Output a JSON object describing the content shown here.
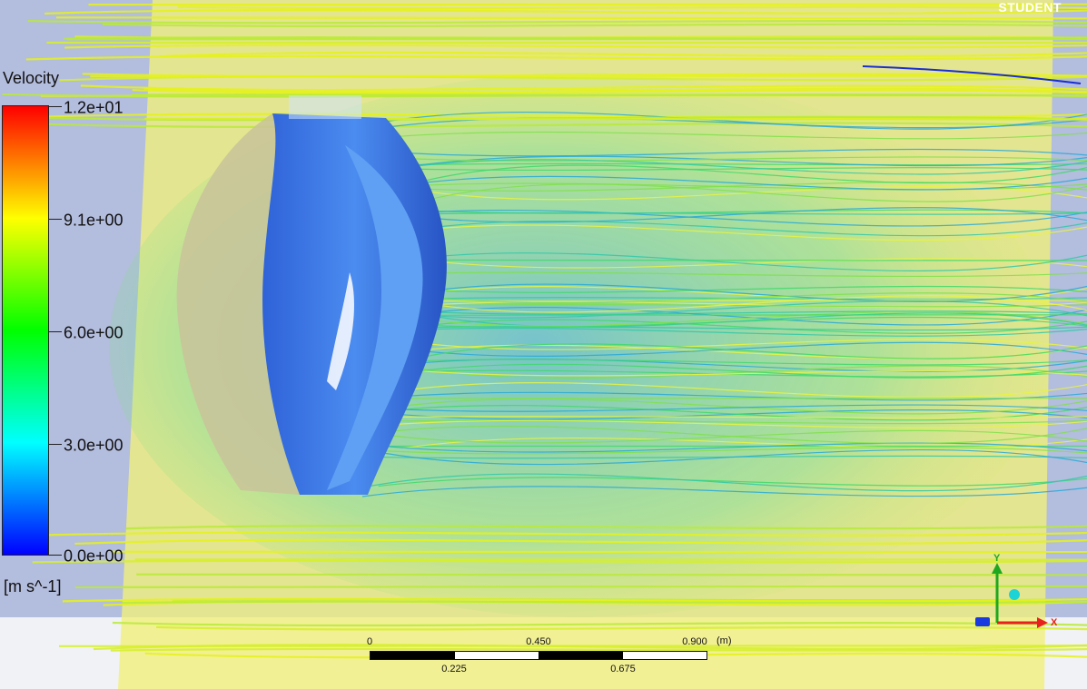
{
  "watermark": "STUDENT",
  "legend": {
    "title": "Velocity",
    "unit": "[m s^-1]",
    "ticks": [
      "1.2e+01",
      "9.1e+00",
      "6.0e+00",
      "3.0e+00",
      "0.0e+00"
    ],
    "colors": [
      "#ff0000",
      "#ffff00",
      "#00ff00",
      "#00ffff",
      "#0000ff"
    ]
  },
  "scale_bar": {
    "top_labels": [
      "0",
      "0.450",
      "0.900"
    ],
    "bottom_labels": [
      "0.225",
      "0.675"
    ],
    "unit": "(m)"
  },
  "triad": {
    "x_label": "X",
    "y_label": "Y",
    "x_color": "#e8211e",
    "y_color": "#1fa81f",
    "z_color": "#1a3adf"
  },
  "scene": {
    "plane_color": "#f2f07a",
    "blade_color": "#3a76e6"
  }
}
